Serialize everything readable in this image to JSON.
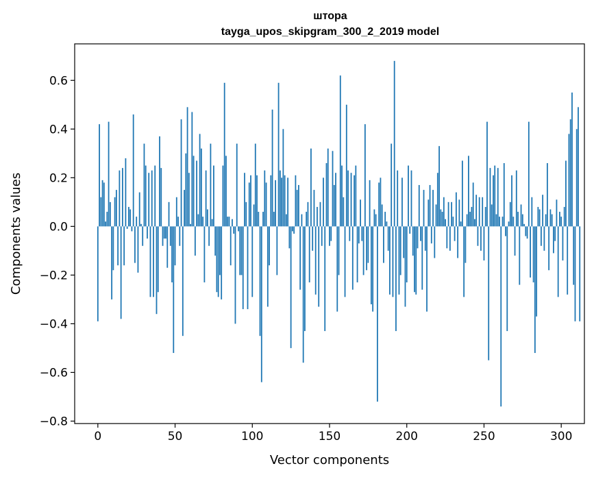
{
  "chart_data": {
    "type": "bar",
    "title": "штора",
    "subtitle": "tayga_upos_skipgram_300_2_2019 model",
    "xlabel": "Vector components",
    "ylabel": "Components values",
    "xlim": [
      -15,
      315
    ],
    "ylim": [
      -0.81,
      0.75
    ],
    "xticks": [
      0,
      50,
      100,
      150,
      200,
      250,
      300
    ],
    "yticks": [
      -0.8,
      -0.6,
      -0.4,
      -0.2,
      0.0,
      0.2,
      0.4,
      0.6
    ],
    "ytick_labels": [
      "−0.8",
      "−0.6",
      "−0.4",
      "−0.2",
      "0.0",
      "0.2",
      "0.4",
      "0.6"
    ],
    "bar_color": "#1f77b4",
    "values": [
      -0.39,
      0.42,
      0.12,
      0.19,
      0.18,
      0.02,
      0.06,
      0.43,
      0.1,
      -0.3,
      -0.18,
      0.12,
      0.15,
      -0.16,
      0.23,
      -0.38,
      0.24,
      -0.16,
      0.28,
      -0.01,
      0.08,
      0.07,
      -0.02,
      0.46,
      -0.15,
      0.04,
      -0.19,
      0.14,
      0.01,
      -0.08,
      0.34,
      0.25,
      -0.05,
      0.22,
      -0.29,
      0.23,
      -0.29,
      0.25,
      -0.36,
      -0.27,
      0.37,
      0.24,
      -0.08,
      -0.05,
      -0.05,
      -0.17,
      0.1,
      -0.08,
      -0.23,
      -0.52,
      -0.16,
      0.12,
      0.04,
      -0.08,
      0.44,
      -0.45,
      0.15,
      0.3,
      0.49,
      0.22,
      0.01,
      0.47,
      0.29,
      -0.12,
      0.27,
      0.05,
      0.38,
      0.32,
      0.04,
      -0.23,
      0.23,
      0.07,
      -0.08,
      0.34,
      0.03,
      0.25,
      -0.12,
      -0.27,
      -0.29,
      -0.2,
      -0.3,
      0.25,
      0.59,
      0.29,
      0.04,
      0.04,
      -0.16,
      0.03,
      -0.03,
      -0.4,
      0.34,
      -0.02,
      -0.2,
      -0.2,
      -0.34,
      0.22,
      0.1,
      -0.34,
      0.18,
      0.21,
      -0.29,
      0.09,
      0.34,
      0.21,
      0.06,
      -0.45,
      -0.64,
      0.06,
      0.23,
      0.18,
      -0.33,
      -0.16,
      0.21,
      0.48,
      0.06,
      0.19,
      -0.2,
      0.59,
      0.23,
      0.2,
      0.4,
      0.21,
      0.05,
      0.2,
      -0.09,
      -0.5,
      -0.02,
      -0.03,
      0.21,
      0.15,
      0.17,
      -0.26,
      0.05,
      -0.56,
      -0.43,
      0.06,
      0.1,
      -0.23,
      0.32,
      -0.1,
      0.15,
      -0.28,
      0.08,
      -0.33,
      0.1,
      -0.08,
      0.2,
      -0.43,
      0.26,
      0.32,
      -0.08,
      -0.06,
      0.31,
      0.17,
      0.22,
      -0.35,
      -0.2,
      0.62,
      0.25,
      0.12,
      -0.29,
      0.5,
      0.23,
      -0.06,
      0.22,
      -0.26,
      0.21,
      0.25,
      -0.23,
      -0.07,
      0.11,
      -0.06,
      -0.2,
      0.42,
      -0.18,
      -0.15,
      0.19,
      -0.32,
      -0.35,
      0.07,
      0.05,
      -0.72,
      0.18,
      0.2,
      0.09,
      -0.15,
      0.06,
      0.02,
      -0.1,
      -0.28,
      0.34,
      -0.29,
      0.68,
      -0.43,
      0.23,
      -0.28,
      -0.2,
      0.2,
      -0.13,
      -0.33,
      -0.23,
      0.25,
      -0.03,
      0.23,
      -0.12,
      -0.27,
      -0.28,
      -0.09,
      0.17,
      -0.06,
      -0.26,
      0.15,
      -0.1,
      -0.35,
      0.11,
      0.17,
      -0.07,
      0.15,
      -0.13,
      0.09,
      0.22,
      0.33,
      0.07,
      0.06,
      0.12,
      0.03,
      -0.09,
      0.1,
      -0.1,
      0.1,
      0.04,
      -0.06,
      0.14,
      -0.13,
      0.11,
      0.02,
      0.27,
      -0.29,
      -0.15,
      0.05,
      0.29,
      0.06,
      0.08,
      0.18,
      0.03,
      0.13,
      -0.08,
      0.12,
      -0.1,
      0.12,
      -0.14,
      0.08,
      0.43,
      -0.55,
      0.24,
      0.09,
      0.21,
      0.25,
      0.05,
      0.24,
      0.04,
      -0.74,
      0.04,
      0.26,
      -0.04,
      -0.43,
      0.02,
      0.1,
      0.21,
      0.04,
      -0.12,
      0.23,
      0.06,
      -0.24,
      0.09,
      0.05,
      0.01,
      -0.04,
      -0.05,
      0.43,
      -0.21,
      0.12,
      -0.23,
      -0.52,
      -0.37,
      0.08,
      0.07,
      -0.08,
      0.13,
      -0.1,
      0.05,
      0.26,
      -0.18,
      0.07,
      0.05,
      -0.11,
      -0.06,
      0.11,
      -0.29,
      0.06,
      0.04,
      -0.14,
      0.08,
      0.27,
      -0.28,
      0.38,
      0.44,
      0.55,
      -0.24,
      -0.39,
      0.4,
      0.49,
      -0.39
    ]
  }
}
